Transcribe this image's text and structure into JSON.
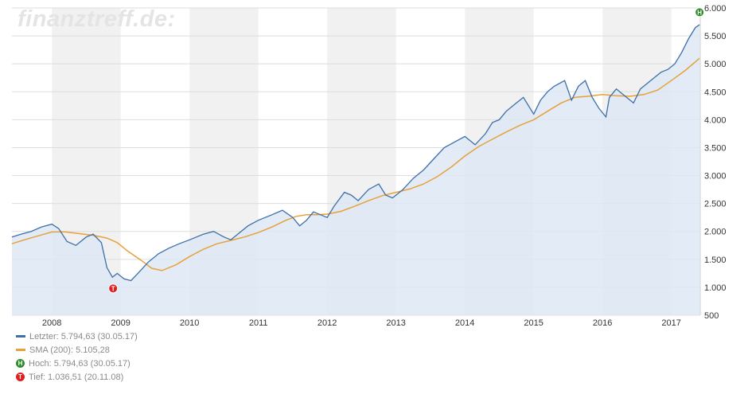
{
  "watermark": "finanztreff.de:",
  "legend": {
    "last": "Letzter: 5.794,63 (30.05.17)",
    "sma": "SMA (200): 5.105,28",
    "high": "Hoch: 5.794,63 (30.05.17)",
    "low": "Tief: 1.036,51 (20.11.08)",
    "high_badge": "H",
    "low_badge": "T"
  },
  "colors": {
    "price_line": "#3d6fa8",
    "price_fill": "#dde8f4",
    "sma_line": "#e8a13a",
    "high_marker": "#2e8b2e",
    "low_marker": "#e02020",
    "band": "#f1f1f1",
    "grid": "#dddddd"
  },
  "chart_data": {
    "type": "line",
    "title": "",
    "xlabel": "",
    "ylabel": "",
    "x_ticks": [
      "2008",
      "2009",
      "2010",
      "2011",
      "2012",
      "2013",
      "2014",
      "2015",
      "2016",
      "2017"
    ],
    "y_ticks": [
      "500",
      "1.000",
      "1.500",
      "2.000",
      "2.500",
      "3.000",
      "3.500",
      "4.000",
      "4.500",
      "5.000",
      "5.500",
      "6.000"
    ],
    "ylim": [
      500,
      6000
    ],
    "xlim": [
      2007.42,
      2017.42
    ],
    "grid": true,
    "series": [
      {
        "name": "Letzter",
        "x": [
          2007.42,
          2007.55,
          2007.7,
          2007.85,
          2008.0,
          2008.1,
          2008.22,
          2008.35,
          2008.5,
          2008.6,
          2008.72,
          2008.8,
          2008.88,
          2008.95,
          2009.05,
          2009.15,
          2009.25,
          2009.4,
          2009.55,
          2009.7,
          2009.85,
          2010.0,
          2010.2,
          2010.35,
          2010.5,
          2010.6,
          2010.7,
          2010.85,
          2011.0,
          2011.2,
          2011.35,
          2011.5,
          2011.6,
          2011.7,
          2011.8,
          2011.9,
          2012.0,
          2012.1,
          2012.25,
          2012.35,
          2012.45,
          2012.6,
          2012.75,
          2012.85,
          2012.95,
          2013.1,
          2013.25,
          2013.4,
          2013.55,
          2013.7,
          2013.85,
          2014.0,
          2014.15,
          2014.3,
          2014.4,
          2014.5,
          2014.6,
          2014.75,
          2014.85,
          2014.95,
          2015.0,
          2015.1,
          2015.2,
          2015.3,
          2015.45,
          2015.55,
          2015.65,
          2015.75,
          2015.85,
          2015.95,
          2016.05,
          2016.1,
          2016.2,
          2016.35,
          2016.45,
          2016.55,
          2016.65,
          2016.75,
          2016.85,
          2016.95,
          2017.05,
          2017.15,
          2017.25,
          2017.35,
          2017.41
        ],
        "y": [
          1900,
          1950,
          2000,
          2080,
          2130,
          2050,
          1820,
          1750,
          1900,
          1950,
          1800,
          1350,
          1180,
          1250,
          1150,
          1120,
          1250,
          1450,
          1600,
          1700,
          1780,
          1850,
          1950,
          2000,
          1900,
          1850,
          1950,
          2100,
          2200,
          2300,
          2380,
          2250,
          2100,
          2200,
          2350,
          2300,
          2250,
          2450,
          2700,
          2650,
          2550,
          2750,
          2850,
          2650,
          2600,
          2750,
          2950,
          3100,
          3300,
          3500,
          3600,
          3700,
          3550,
          3750,
          3950,
          4000,
          4150,
          4300,
          4400,
          4200,
          4100,
          4350,
          4500,
          4600,
          4700,
          4350,
          4600,
          4700,
          4400,
          4200,
          4050,
          4400,
          4550,
          4400,
          4300,
          4550,
          4650,
          4750,
          4850,
          4900,
          5000,
          5200,
          5450,
          5650,
          5700
        ]
      },
      {
        "name": "SMA (200)",
        "x": [
          2007.42,
          2007.6,
          2007.8,
          2008.0,
          2008.2,
          2008.4,
          2008.6,
          2008.8,
          2008.95,
          2009.1,
          2009.3,
          2009.45,
          2009.6,
          2009.8,
          2010.0,
          2010.2,
          2010.4,
          2010.6,
          2010.8,
          2011.0,
          2011.2,
          2011.4,
          2011.55,
          2011.7,
          2011.85,
          2012.0,
          2012.2,
          2012.4,
          2012.6,
          2012.8,
          2013.0,
          2013.2,
          2013.4,
          2013.6,
          2013.8,
          2014.0,
          2014.2,
          2014.4,
          2014.6,
          2014.8,
          2015.0,
          2015.2,
          2015.4,
          2015.6,
          2015.8,
          2016.0,
          2016.2,
          2016.4,
          2016.6,
          2016.8,
          2017.0,
          2017.2,
          2017.41
        ],
        "y": [
          1780,
          1850,
          1920,
          1990,
          1990,
          1960,
          1930,
          1880,
          1800,
          1650,
          1480,
          1340,
          1300,
          1400,
          1550,
          1680,
          1780,
          1840,
          1900,
          1980,
          2080,
          2200,
          2270,
          2300,
          2300,
          2310,
          2360,
          2450,
          2550,
          2640,
          2700,
          2760,
          2850,
          2980,
          3150,
          3350,
          3520,
          3650,
          3780,
          3900,
          4000,
          4150,
          4300,
          4400,
          4420,
          4450,
          4430,
          4420,
          4450,
          4530,
          4700,
          4880,
          5100
        ]
      }
    ],
    "markers": [
      {
        "type": "high",
        "label": "H",
        "x": 2017.41,
        "y": 5794.63
      },
      {
        "type": "low",
        "label": "T",
        "x": 2008.89,
        "y": 1036.51
      }
    ]
  }
}
